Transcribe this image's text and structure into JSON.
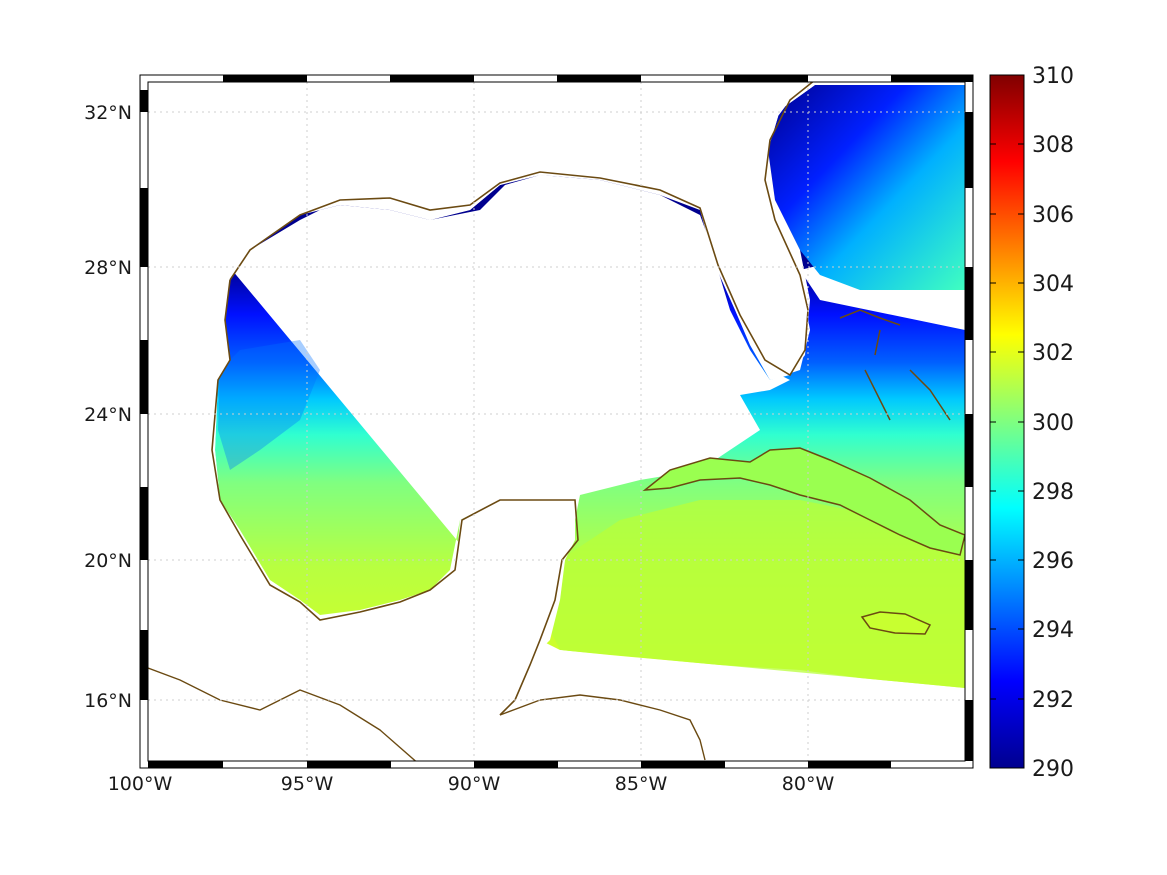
{
  "map": {
    "lon_range": [
      -100,
      -75
    ],
    "lat_range": [
      14.2,
      33.0
    ],
    "graticule": "dotted-grey",
    "frame_style": "alternating-black-white",
    "coast_color": "#6b4a12",
    "land_color": "#ffffff",
    "lat_labels": [
      "32°N",
      "28°N",
      "24°N",
      "20°N",
      "16°N"
    ],
    "lat_values": [
      32,
      28,
      24,
      20,
      16
    ],
    "lon_labels": [
      "100°W",
      "95°W",
      "90°W",
      "85°W",
      "80°W"
    ],
    "lon_values": [
      -100,
      -95,
      -90,
      -85,
      -80
    ]
  },
  "colorbar": {
    "colormap": "jet",
    "min": 290,
    "max": 310,
    "tick_labels": [
      "310",
      "308",
      "306",
      "304",
      "302",
      "300",
      "298",
      "296",
      "294",
      "292",
      "290"
    ],
    "tick_values": [
      310,
      308,
      306,
      304,
      302,
      300,
      298,
      296,
      294,
      292,
      290
    ]
  },
  "field": {
    "description_values": {
      "northern_gulf": 290,
      "central_gulf": 294,
      "southern_gulf": 298,
      "caribbean": 300.5,
      "atlantic_north": 290,
      "atlantic_south": 298
    }
  }
}
